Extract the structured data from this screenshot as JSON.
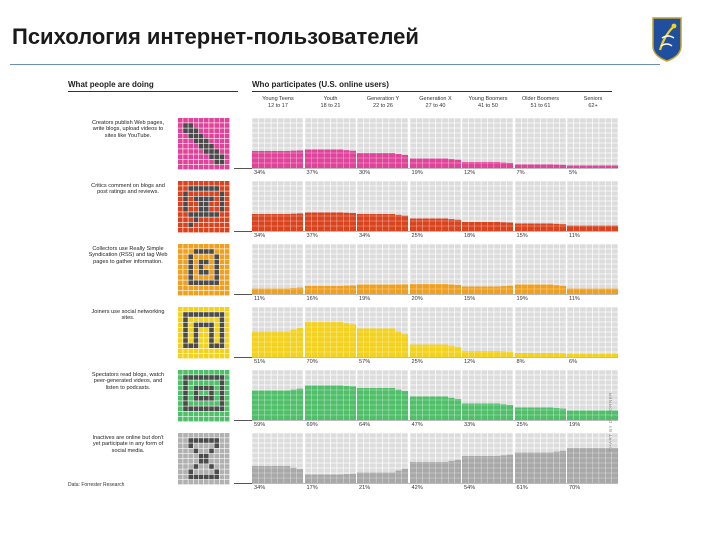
{
  "slide": {
    "title": "Психология интернет-пользователей"
  },
  "headers": {
    "left": "What people are doing",
    "right": "Who participates (U.S. online users)"
  },
  "age_groups": [
    {
      "name": "Young Teens",
      "range": "12 to 17"
    },
    {
      "name": "Youth",
      "range": "18 to 21"
    },
    {
      "name": "Generation Y",
      "range": "22 to 26"
    },
    {
      "name": "Generation X",
      "range": "27 to 40"
    },
    {
      "name": "Young Boomers",
      "range": "41 to 50"
    },
    {
      "name": "Older Boomers",
      "range": "51 to 61"
    },
    {
      "name": "Seniors",
      "range": "62+"
    }
  ],
  "source": "Data: Forrester Research",
  "credit": "CHART BY DE KORNER",
  "colors": {
    "creators": "#e0449a",
    "critics": "#d9441f",
    "collectors": "#f0a020",
    "joiners": "#f2d21e",
    "spectators": "#4fbf6a",
    "inactives": "#a8a8a8",
    "grid_bg": "#dcdcdc"
  },
  "chart_data": {
    "type": "bar",
    "title": "Who participates (U.S. online users)",
    "categories": [
      "12 to 17",
      "18 to 21",
      "22 to 26",
      "27 to 40",
      "41 to 50",
      "51 to 61",
      "62+"
    ],
    "ylim": [
      0,
      100
    ],
    "series": [
      {
        "name": "Creators",
        "description": "Creators publish Web pages, write blogs, upload videos to sites like YouTube.",
        "values": [
          34,
          37,
          30,
          19,
          12,
          7,
          5
        ],
        "labels": [
          "34%",
          "37%",
          "30%",
          "19%",
          "12%",
          "7%",
          "5%"
        ]
      },
      {
        "name": "Critics",
        "description": "Critics comment on blogs and post ratings and reviews.",
        "values": [
          34,
          37,
          34,
          25,
          18,
          15,
          11
        ],
        "labels": [
          "34%",
          "37%",
          "34%",
          "25%",
          "18%",
          "15%",
          "11%"
        ]
      },
      {
        "name": "Collectors",
        "description": "Collectors use Really Simple Syndication (RSS) and tag Web pages to gather information.",
        "values": [
          11,
          16,
          19,
          20,
          15,
          19,
          11
        ],
        "labels": [
          "11%",
          "16%",
          "19%",
          "20%",
          "15%",
          "19%",
          "11%"
        ]
      },
      {
        "name": "Joiners",
        "description": "Joiners use social networking sites.",
        "values": [
          51,
          70,
          57,
          25,
          12,
          8,
          6
        ],
        "labels": [
          "51%",
          "70%",
          "57%",
          "25%",
          "12%",
          "8%",
          "6%"
        ]
      },
      {
        "name": "Spectators",
        "description": "Spectators read blogs, watch peer-generated videos, and listen to podcasts.",
        "values": [
          59,
          69,
          64,
          47,
          33,
          25,
          19
        ],
        "labels": [
          "59%",
          "69%",
          "64%",
          "47%",
          "33%",
          "25%",
          "19%"
        ]
      },
      {
        "name": "Inactives",
        "description": "Inactives are online but don't yet participate in any form of social media.",
        "values": [
          34,
          17,
          21,
          42,
          54,
          61,
          70
        ],
        "labels": [
          "34%",
          "17%",
          "21%",
          "42%",
          "54%",
          "61%",
          "70%"
        ]
      }
    ]
  }
}
